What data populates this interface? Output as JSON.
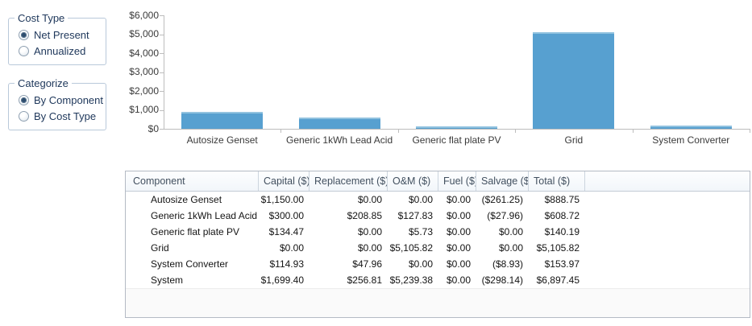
{
  "controls": {
    "cost_type": {
      "title": "Cost Type",
      "options": [
        {
          "label": "Net Present",
          "selected": true
        },
        {
          "label": "Annualized",
          "selected": false
        }
      ]
    },
    "categorize": {
      "title": "Categorize",
      "options": [
        {
          "label": "By Component",
          "selected": true
        },
        {
          "label": "By Cost Type",
          "selected": false
        }
      ]
    }
  },
  "chart_data": {
    "type": "bar",
    "title": "",
    "xlabel": "",
    "ylabel": "",
    "categories": [
      "Autosize Genset",
      "Generic 1kWh Lead Acid",
      "Generic flat plate PV",
      "Grid",
      "System Converter"
    ],
    "values": [
      888.75,
      608.72,
      140.19,
      5105.82,
      153.97
    ],
    "ylim": [
      0,
      6000
    ],
    "ytick_step": 1000,
    "ytick_labels": [
      "$0",
      "$1,000",
      "$2,000",
      "$3,000",
      "$4,000",
      "$5,000",
      "$6,000"
    ],
    "grid": false,
    "legend_position": "none",
    "bar_color": "#57a0d0",
    "bar_top_color": "#91c2df",
    "axis_color": "#bdbdbd"
  },
  "table": {
    "headers": [
      "Component",
      "Capital ($)",
      "Replacement ($)",
      "O&M ($)",
      "Fuel ($)",
      "Salvage ($)",
      "Total ($)"
    ],
    "rows": [
      [
        "Autosize Genset",
        "$1,150.00",
        "$0.00",
        "$0.00",
        "$0.00",
        "($261.25)",
        "$888.75"
      ],
      [
        "Generic 1kWh Lead Acid",
        "$300.00",
        "$208.85",
        "$127.83",
        "$0.00",
        "($27.96)",
        "$608.72"
      ],
      [
        "Generic flat plate PV",
        "$134.47",
        "$0.00",
        "$5.73",
        "$0.00",
        "$0.00",
        "$140.19"
      ],
      [
        "Grid",
        "$0.00",
        "$0.00",
        "$5,105.82",
        "$0.00",
        "$0.00",
        "$5,105.82"
      ],
      [
        "System Converter",
        "$114.93",
        "$47.96",
        "$0.00",
        "$0.00",
        "($8.93)",
        "$153.97"
      ],
      [
        "System",
        "$1,699.40",
        "$256.81",
        "$5,239.38",
        "$0.00",
        "($298.14)",
        "$6,897.45"
      ]
    ]
  },
  "colors": {
    "panel_text": "#20395c",
    "group_border": "#b9c9da",
    "table_border": "#b4bac4",
    "header_text": "#42505f",
    "cell_text": "#141414"
  }
}
